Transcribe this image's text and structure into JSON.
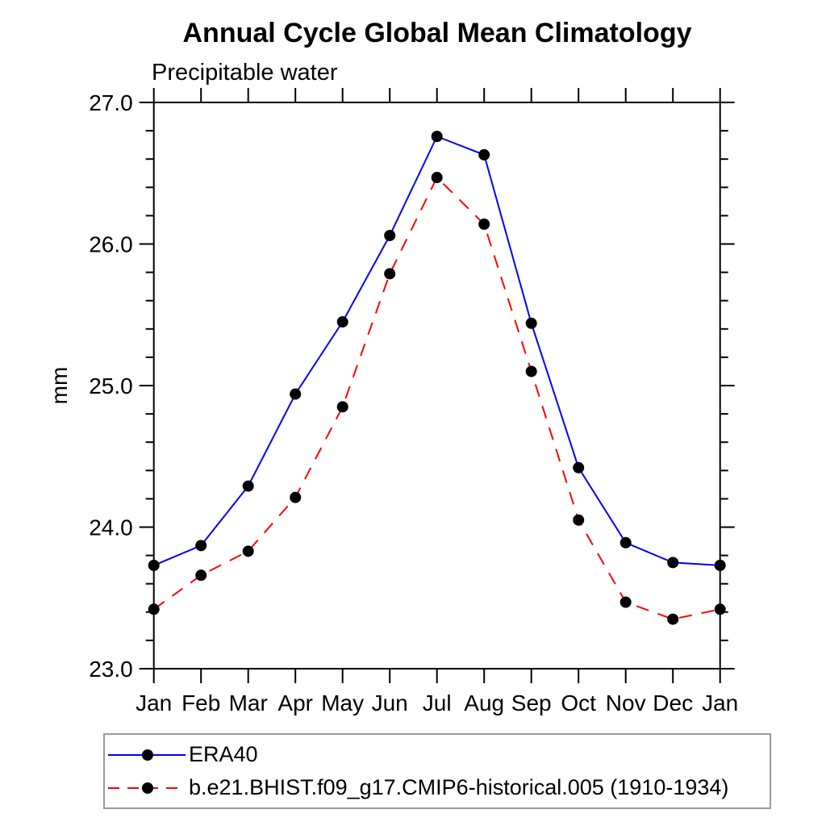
{
  "page": {
    "background": "#ffffff"
  },
  "chart_data": {
    "type": "line",
    "title": "Annual Cycle Global Mean Climatology",
    "subtitle": "Precipitable water",
    "ylabel": "mm",
    "xlabel": "",
    "categories": [
      "Jan",
      "Feb",
      "Mar",
      "Apr",
      "May",
      "Jun",
      "Jul",
      "Aug",
      "Sep",
      "Oct",
      "Nov",
      "Dec",
      "Jan"
    ],
    "ylim": [
      23.0,
      27.0
    ],
    "ytick_labels": [
      "23.0",
      "24.0",
      "25.0",
      "26.0",
      "27.0"
    ],
    "ytick_values": [
      23.0,
      24.0,
      25.0,
      26.0,
      27.0
    ],
    "ytick_minor_step": 0.2,
    "grid": false,
    "legend_position": "bottom-left-box",
    "series": [
      {
        "name": "ERA40",
        "color": "#0000ff",
        "line_style": "solid",
        "marker": "filled-circle",
        "marker_color": "#000000",
        "values": [
          23.73,
          23.87,
          24.29,
          24.94,
          25.45,
          26.06,
          26.76,
          26.63,
          25.44,
          24.42,
          23.89,
          23.75,
          23.73
        ]
      },
      {
        "name": "b.e21.BHIST.f09_g17.CMIP6-historical.005 (1910-1934)",
        "color": "#ff0000",
        "line_style": "dashed",
        "marker": "filled-circle",
        "marker_color": "#000000",
        "values": [
          23.42,
          23.66,
          23.83,
          24.21,
          24.85,
          25.79,
          26.47,
          26.14,
          25.1,
          24.05,
          23.47,
          23.35,
          23.42
        ]
      }
    ]
  },
  "colors": {
    "axis": "#000000",
    "text": "#000000",
    "legend_border": "#9b9b9b",
    "series_blue": "#0000ff",
    "series_red": "#ff0000",
    "marker_black": "#000000"
  }
}
